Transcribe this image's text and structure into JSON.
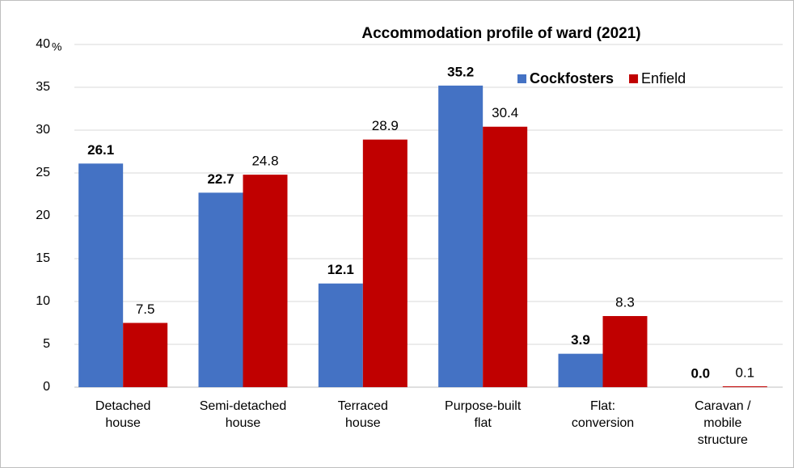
{
  "chart_data": {
    "type": "bar",
    "title": "Accommodation  profile of ward (2021)",
    "categories": [
      [
        "Detached",
        "house"
      ],
      [
        "Semi-detached",
        "house"
      ],
      [
        "Terraced",
        "house"
      ],
      [
        "Purpose-built",
        "flat"
      ],
      [
        "Flat:",
        "conversion"
      ],
      [
        "Caravan /",
        "mobile",
        "structure"
      ]
    ],
    "series": [
      {
        "name": "Cockfosters",
        "color": "#4472c4",
        "label_color": "#1f4e79",
        "values": [
          26.1,
          22.7,
          12.1,
          35.2,
          3.9,
          0
        ],
        "value_labels": [
          "26.1",
          "22.7",
          "12.1",
          "35.2",
          "3.9",
          "0.0"
        ]
      },
      {
        "name": "Enfield",
        "color": "#c00000",
        "label_color": "#c00000",
        "values": [
          7.5,
          24.8,
          28.9,
          30.4,
          8.3,
          0.1
        ],
        "value_labels": [
          "7.5",
          "24.8",
          "28.9",
          "30.4",
          "8.3",
          "0.1"
        ]
      }
    ],
    "y_unit": "%",
    "ylim": [
      0,
      40
    ],
    "yticks": [
      0,
      5,
      10,
      15,
      20,
      25,
      30,
      35,
      40
    ],
    "grid": true,
    "legend": "top-right"
  }
}
